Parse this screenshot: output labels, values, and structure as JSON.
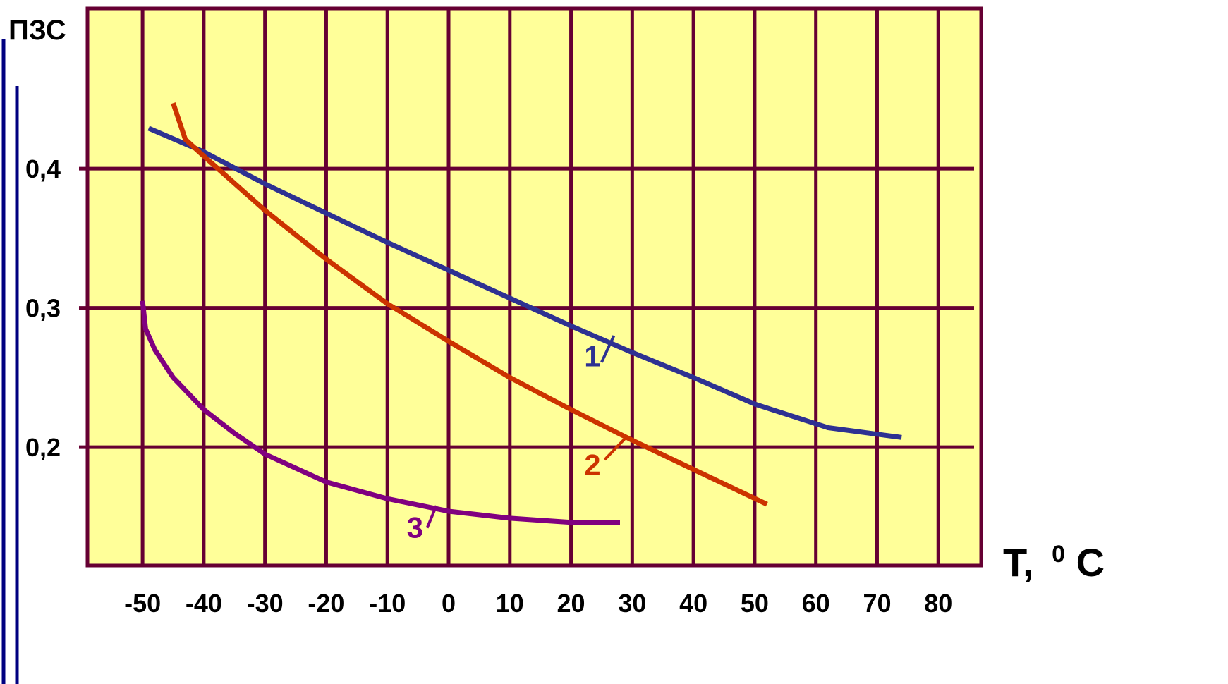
{
  "chart_data": {
    "type": "line",
    "ylabel": "ПЗС",
    "xlabel": "T,",
    "xlabel_unit_sup": "0",
    "xlabel_unit": "C",
    "x_ticks": [
      -50,
      -40,
      -30,
      -20,
      -10,
      0,
      10,
      20,
      30,
      40,
      50,
      60,
      70,
      80
    ],
    "x_tick_labels": [
      "-50",
      "-40",
      "-30",
      "-20",
      "-10",
      "0",
      "10",
      "20",
      "30",
      "40",
      "50",
      "60",
      "70",
      "80"
    ],
    "y_ticks": [
      0.4,
      0.3,
      0.2
    ],
    "y_tick_labels": [
      "0,4",
      "0,3",
      "0,2"
    ],
    "xlim": [
      -59,
      87
    ],
    "ylim": [
      0.115,
      0.515
    ],
    "grid": true,
    "series": [
      {
        "name": "1",
        "color": "#2E3192",
        "x": [
          -49,
          -40,
          -30,
          -20,
          -10,
          0,
          10,
          20,
          30,
          40,
          50,
          62,
          74
        ],
        "y": [
          0.429,
          0.412,
          0.389,
          0.368,
          0.347,
          0.327,
          0.307,
          0.287,
          0.268,
          0.25,
          0.231,
          0.214,
          0.207
        ]
      },
      {
        "name": "2",
        "color": "#CC3300",
        "x": [
          -45,
          -43,
          -40,
          -30,
          -20,
          -10,
          0,
          10,
          20,
          30,
          40,
          52
        ],
        "y": [
          0.447,
          0.421,
          0.409,
          0.37,
          0.335,
          0.303,
          0.276,
          0.25,
          0.227,
          0.205,
          0.184,
          0.159
        ]
      },
      {
        "name": "3",
        "color": "#800080",
        "x": [
          -50,
          -49.5,
          -48,
          -45,
          -40,
          -35,
          -30,
          -25,
          -20,
          -10,
          0,
          10,
          20,
          28
        ],
        "y": [
          0.305,
          0.285,
          0.27,
          0.25,
          0.227,
          0.21,
          0.195,
          0.185,
          0.175,
          0.163,
          0.154,
          0.149,
          0.146,
          0.146
        ]
      }
    ],
    "annotations": [
      {
        "text": "1",
        "series": 0,
        "label_x": 23.5,
        "label_y": 0.258,
        "leader": [
          [
            25,
            0.261
          ],
          [
            27,
            0.28
          ]
        ]
      },
      {
        "text": "2",
        "series": 1,
        "label_x": 23.5,
        "label_y": 0.18,
        "leader": [
          [
            25.5,
            0.191
          ],
          [
            29,
            0.207
          ]
        ]
      },
      {
        "text": "3",
        "series": 2,
        "label_x": -5.5,
        "label_y": 0.135,
        "leader": [
          [
            -3.5,
            0.142
          ],
          [
            -2,
            0.158
          ]
        ]
      }
    ],
    "colors": {
      "plot_background": "#FFFF99",
      "grid": "#660033",
      "frame": "#660033",
      "left_bar": "#000080"
    }
  }
}
